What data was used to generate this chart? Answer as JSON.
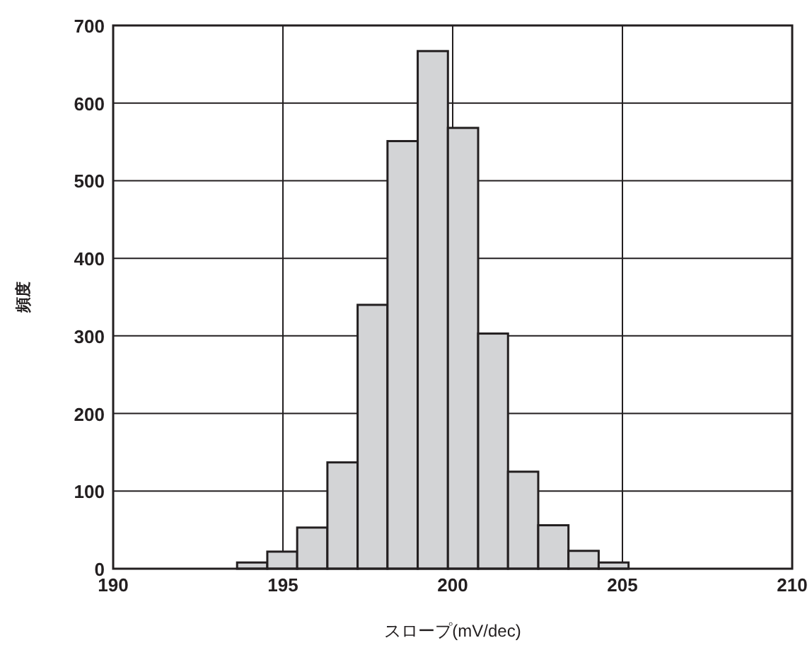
{
  "chart_data": {
    "type": "histogram",
    "xlabel": "スロープ(mV/dec)",
    "ylabel": "頻度",
    "bins": [
      193.65,
      194.54,
      195.42,
      196.31,
      197.2,
      198.08,
      198.97,
      199.86,
      200.75,
      201.63,
      202.52,
      203.41,
      204.3,
      205.18
    ],
    "values": [
      8,
      22,
      53,
      137,
      340,
      551,
      667,
      568,
      303,
      125,
      56,
      23,
      8
    ],
    "color": "#d3d4d6",
    "xlim": [
      190,
      210
    ],
    "xticks": [
      190,
      195,
      200,
      205,
      210
    ],
    "ylim": [
      0,
      700
    ],
    "yticks": [
      0,
      100,
      200,
      300,
      400,
      500,
      600,
      700
    ],
    "grid": true
  }
}
